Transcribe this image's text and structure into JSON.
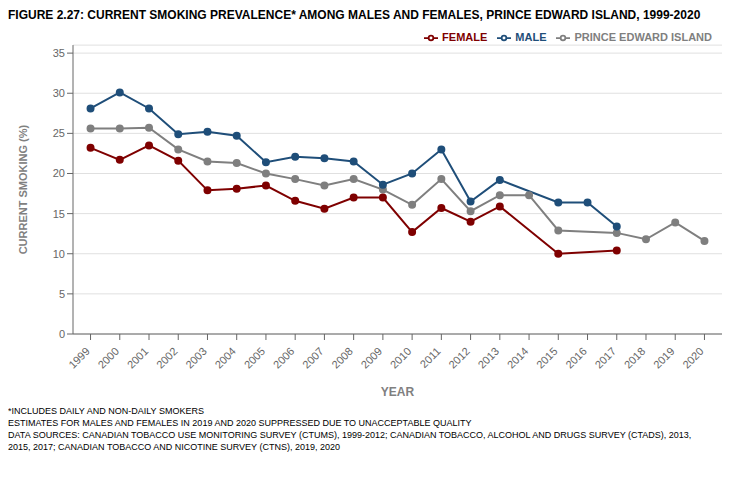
{
  "chart_data": {
    "type": "line",
    "title": "FIGURE 2.27: CURRENT SMOKING PREVALENCE* AMONG MALES AND FEMALES, PRINCE EDWARD ISLAND, 1999-2020",
    "x_label": "YEAR",
    "y_label": "CURRENT SMOKING (%)",
    "annotations": [
      "*INCLUDES DAILY AND NON-DAILY SMOKERS",
      "ESTIMATES FOR MALES AND FEMALES IN 2019 AND 2020 SUPPRESSED DUE TO UNACCEPTABLE QUALITY",
      "DATA SOURCES: CANADIAN TOBACCO USE MONITORING SURVEY (CTUMS), 1999-2012; CANADIAN TOBACCO, ALCOHOL AND DRUGS SURVEY (CTADS), 2013,",
      "2015, 2017; CANADIAN TOBACCO AND NICOTINE SURVEY (CTNS), 2019, 2020"
    ],
    "series": [
      {
        "name": "PRINCE EDWARD ISLAND",
        "color": "#7f7f7f",
        "marker": "circle",
        "x": [
          1999,
          2000,
          2001,
          2002,
          2003,
          2004,
          2005,
          2006,
          2007,
          2008,
          2009,
          2010,
          2011,
          2012,
          2013,
          2014,
          2015,
          2017,
          2018,
          2019,
          2020
        ],
        "values": [
          25.6,
          25.6,
          25.7,
          23.0,
          21.5,
          21.3,
          20.0,
          19.3,
          18.5,
          19.3,
          18.0,
          16.1,
          19.3,
          15.3,
          17.3,
          17.3,
          12.9,
          12.6,
          11.8,
          13.9,
          11.6
        ]
      },
      {
        "name": "MALE",
        "color": "#1f4e79",
        "marker": "circle",
        "x": [
          1999,
          2000,
          2001,
          2002,
          2003,
          2004,
          2005,
          2006,
          2007,
          2008,
          2009,
          2010,
          2011,
          2012,
          2013,
          2015,
          2016,
          2017
        ],
        "values": [
          28.1,
          30.1,
          28.1,
          24.9,
          25.2,
          24.7,
          21.4,
          22.1,
          21.9,
          21.5,
          18.6,
          20.0,
          23.0,
          16.5,
          19.2,
          16.4,
          16.4,
          13.4
        ]
      },
      {
        "name": "FEMALE",
        "color": "#7f0000",
        "marker": "circle",
        "x": [
          1999,
          2000,
          2001,
          2002,
          2003,
          2004,
          2005,
          2006,
          2007,
          2008,
          2009,
          2010,
          2011,
          2012,
          2013,
          2015,
          2017
        ],
        "values": [
          23.2,
          21.7,
          23.5,
          21.6,
          17.9,
          18.1,
          18.5,
          16.6,
          15.6,
          17.0,
          17.0,
          12.7,
          15.7,
          14.0,
          15.9,
          10.0,
          10.4
        ]
      }
    ],
    "xlim": [
      1998.4,
      2020.6
    ],
    "xticks": [
      1999,
      2000,
      2001,
      2002,
      2003,
      2004,
      2005,
      2006,
      2007,
      2008,
      2009,
      2010,
      2011,
      2012,
      2013,
      2014,
      2015,
      2016,
      2017,
      2018,
      2019,
      2020
    ],
    "ylim": [
      0,
      36
    ],
    "yticks": [
      0,
      5,
      10,
      15,
      20,
      25,
      30,
      35
    ],
    "grid": true,
    "legend": "upper right"
  }
}
